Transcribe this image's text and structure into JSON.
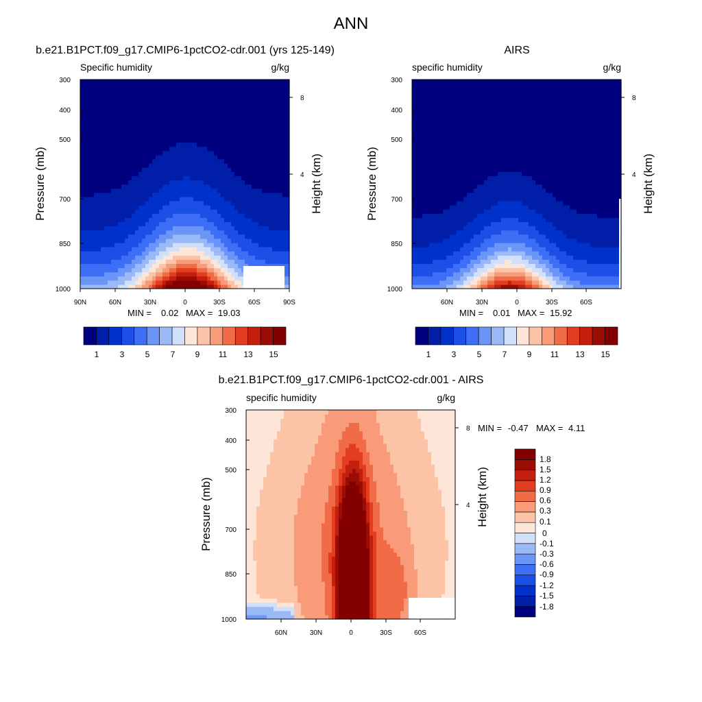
{
  "figure": {
    "main_title": "ANN"
  },
  "chart_data": [
    {
      "type": "heatmap",
      "panel": "model",
      "title": "b.e21.B1PCT.f09_g17.CMIP6-1pctCO2-cdr.001 (yrs 125-149)",
      "left_string": "Specific humidity",
      "right_string": "g/kg",
      "ylabel": "Pressure (mb)",
      "ylabel_right": "Height (km)",
      "x_ticks": [
        "90N",
        "60N",
        "30N",
        "0",
        "30S",
        "60S",
        "90S"
      ],
      "x_tick_values": [
        90,
        60,
        30,
        0,
        -30,
        -60,
        -90
      ],
      "xlim": [
        90,
        -90
      ],
      "y_ticks": [
        "300",
        "400",
        "500",
        "700",
        "850",
        "1000"
      ],
      "y_tick_values": [
        300,
        400,
        500,
        700,
        850,
        1000
      ],
      "ylim": [
        1000,
        300
      ],
      "right_ticks": [
        "8",
        "4"
      ],
      "right_tick_values": [
        8,
        4
      ],
      "min_label": "MIN =",
      "min_value": "0.02",
      "max_label": "MAX =",
      "max_value": "19.03",
      "levels": [
        1,
        2,
        3,
        4,
        5,
        6,
        7,
        8,
        9,
        10,
        11,
        12,
        13,
        14,
        15
      ],
      "colorbar_labels": [
        "1",
        "3",
        "5",
        "7",
        "9",
        "11",
        "13",
        "15"
      ],
      "colors": [
        "#00007f",
        "#001ea8",
        "#0032cb",
        "#1c4fe6",
        "#3d6ef5",
        "#6b95f7",
        "#9bb8f7",
        "#cfe0f8",
        "#fde6d8",
        "#fcc3a6",
        "#f99a79",
        "#f26b47",
        "#e33d21",
        "#c41f0c",
        "#9b0d04",
        "#840000"
      ],
      "profile": {
        "surface_max": 19.03,
        "equator_offset": -2,
        "scale_height_km": 2.1,
        "lat_width_deg": 38
      }
    },
    {
      "type": "heatmap",
      "panel": "obs",
      "title": "AIRS",
      "left_string": "specific humidity",
      "right_string": "g/kg",
      "ylabel": "Pressure (mb)",
      "ylabel_right": "Height (km)",
      "x_ticks": [
        "60N",
        "30N",
        "0",
        "30S",
        "60S"
      ],
      "x_tick_values": [
        60,
        30,
        0,
        -30,
        -60
      ],
      "xlim": [
        90,
        -90
      ],
      "y_ticks": [
        "300",
        "400",
        "500",
        "700",
        "850",
        "1000"
      ],
      "y_tick_values": [
        300,
        400,
        500,
        700,
        850,
        1000
      ],
      "ylim": [
        1000,
        300
      ],
      "right_ticks": [
        "8",
        "4"
      ],
      "right_tick_values": [
        8,
        4
      ],
      "min_label": "MIN =",
      "min_value": "0.01",
      "max_label": "MAX =",
      "max_value": "15.92",
      "levels": [
        1,
        2,
        3,
        4,
        5,
        6,
        7,
        8,
        9,
        10,
        11,
        12,
        13,
        14,
        15
      ],
      "colorbar_labels": [
        "1",
        "3",
        "5",
        "7",
        "9",
        "11",
        "13",
        "15"
      ],
      "colors": [
        "#00007f",
        "#001ea8",
        "#0032cb",
        "#1c4fe6",
        "#3d6ef5",
        "#6b95f7",
        "#9bb8f7",
        "#cfe0f8",
        "#fde6d8",
        "#fcc3a6",
        "#f99a79",
        "#f26b47",
        "#e33d21",
        "#c41f0c",
        "#9b0d04",
        "#840000"
      ],
      "profile": {
        "surface_max": 15.92,
        "equator_offset": 6,
        "scale_height_km": 1.8,
        "lat_width_deg": 36
      }
    },
    {
      "type": "heatmap",
      "panel": "difference",
      "title": "b.e21.B1PCT.f09_g17.CMIP6-1pctCO2-cdr.001 - AIRS",
      "left_string": "specific humidity",
      "right_string": "g/kg",
      "ylabel": "Pressure (mb)",
      "ylabel_right": "Height (km)",
      "x_ticks": [
        "60N",
        "30N",
        "0",
        "30S",
        "60S"
      ],
      "x_tick_values": [
        60,
        30,
        0,
        -30,
        -60
      ],
      "xlim": [
        90,
        -90
      ],
      "y_ticks": [
        "300",
        "400",
        "500",
        "700",
        "850",
        "1000"
      ],
      "y_tick_values": [
        300,
        400,
        500,
        700,
        850,
        1000
      ],
      "ylim": [
        1000,
        300
      ],
      "right_ticks": [
        "8",
        "4"
      ],
      "right_tick_values": [
        8,
        4
      ],
      "min_label": "MIN =",
      "min_value": "-0.47",
      "max_label": "MAX =",
      "max_value": "4.11",
      "levels": [
        -1.8,
        -1.5,
        -1.2,
        -0.9,
        -0.6,
        -0.3,
        -0.1,
        0,
        0.1,
        0.3,
        0.6,
        0.9,
        1.2,
        1.5,
        1.8
      ],
      "colorbar_labels": [
        "1.8",
        "1.5",
        "1.2",
        "0.9",
        "0.6",
        "0.3",
        "0.1",
        "0",
        "-0.1",
        "-0.3",
        "-0.6",
        "-0.9",
        "-1.2",
        "-1.5",
        "-1.8"
      ],
      "colors": [
        "#00007f",
        "#001ea8",
        "#0032cb",
        "#1c4fe6",
        "#3d6ef5",
        "#6b95f7",
        "#9bb8f7",
        "#cfe0f8",
        "#fde6d8",
        "#fcc3a6",
        "#f99a79",
        "#f26b47",
        "#e33d21",
        "#c41f0c",
        "#9b0d04",
        "#840000"
      ]
    }
  ]
}
